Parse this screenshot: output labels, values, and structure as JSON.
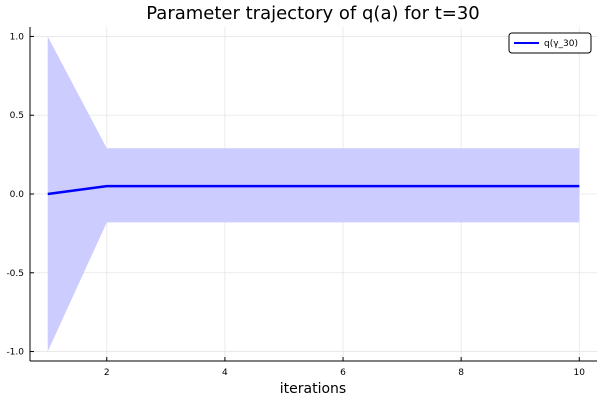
{
  "chart_data": {
    "type": "line",
    "title": "Parameter trajectory of q(a) for t=30",
    "xlabel": "iterations",
    "ylabel": "",
    "xlim": [
      0.7,
      10.3
    ],
    "ylim": [
      -1.06,
      1.06
    ],
    "x_ticks": [
      2,
      4,
      6,
      8,
      10
    ],
    "x_tick_labels": [
      "2",
      "4",
      "6",
      "8",
      "10"
    ],
    "y_ticks": [
      -1.0,
      -0.5,
      0.0,
      0.5,
      1.0
    ],
    "y_tick_labels": [
      "-1.0",
      "-0.5",
      "0.0",
      "0.5",
      "1.0"
    ],
    "grid": true,
    "legend_position": "top-right",
    "series": [
      {
        "name": "q(γ_30)",
        "color": "#0000ff",
        "x": [
          1,
          2,
          3,
          4,
          5,
          6,
          7,
          8,
          9,
          10
        ],
        "y": [
          0.0,
          0.05,
          0.05,
          0.05,
          0.05,
          0.05,
          0.05,
          0.05,
          0.05,
          0.05
        ],
        "band_lower": [
          -1.0,
          -0.18,
          -0.18,
          -0.18,
          -0.18,
          -0.18,
          -0.18,
          -0.18,
          -0.18,
          -0.18
        ],
        "band_upper": [
          1.0,
          0.29,
          0.29,
          0.29,
          0.29,
          0.29,
          0.29,
          0.29,
          0.29,
          0.29
        ],
        "band_color": "#ccccff"
      }
    ]
  }
}
